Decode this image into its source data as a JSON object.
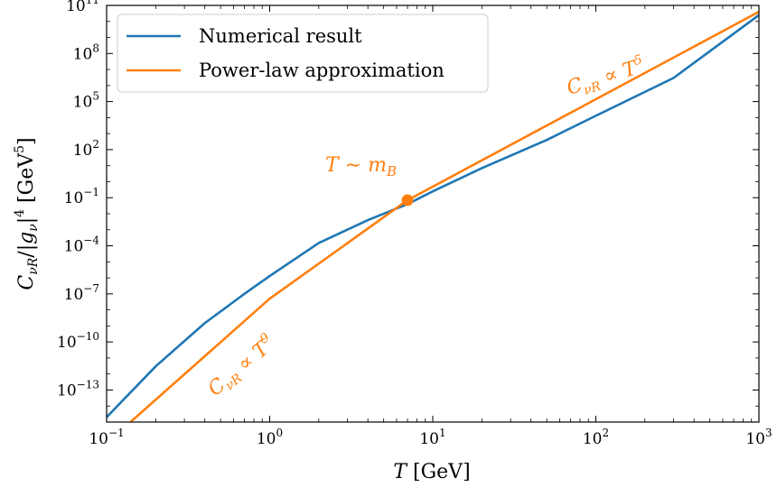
{
  "chart_data": {
    "type": "line",
    "x_scale": "log",
    "y_scale": "log",
    "xlabel": "T [GeV]",
    "ylabel": "C_{ν_R}/|g_ν|^4 [GeV^5]",
    "xlim": [
      0.1,
      1000
    ],
    "ylim": [
      1e-15,
      100000000000.0
    ],
    "x_ticks": [
      {
        "value": 0.1,
        "base": "10",
        "exp": "−1"
      },
      {
        "value": 1,
        "base": "10",
        "exp": "0"
      },
      {
        "value": 10,
        "base": "10",
        "exp": "1"
      },
      {
        "value": 100,
        "base": "10",
        "exp": "2"
      },
      {
        "value": 1000,
        "base": "10",
        "exp": "3"
      }
    ],
    "y_ticks": [
      {
        "value": 1e-13,
        "base": "10",
        "exp": "−13"
      },
      {
        "value": 1e-10,
        "base": "10",
        "exp": "−10"
      },
      {
        "value": 1e-07,
        "base": "10",
        "exp": "−7"
      },
      {
        "value": 0.0001,
        "base": "10",
        "exp": "−4"
      },
      {
        "value": 0.1,
        "base": "10",
        "exp": "−1"
      },
      {
        "value": 100.0,
        "base": "10",
        "exp": "2"
      },
      {
        "value": 100000.0,
        "base": "10",
        "exp": "5"
      },
      {
        "value": 100000000.0,
        "base": "10",
        "exp": "8"
      },
      {
        "value": 100000000000.0,
        "base": "10",
        "exp": "11"
      }
    ],
    "legend": {
      "placement": "top-left"
    },
    "series": [
      {
        "name": "Numerical result",
        "color": "#1f77b4",
        "points": [
          [
            0.1,
            2e-15
          ],
          [
            0.2,
            3e-12
          ],
          [
            0.4,
            1.5e-09
          ],
          [
            0.7,
            1e-07
          ],
          [
            1,
            1.3e-06
          ],
          [
            2,
            0.00015
          ],
          [
            4,
            0.004
          ],
          [
            7,
            0.04
          ],
          [
            10,
            0.25
          ],
          [
            20,
            7
          ],
          [
            50,
            400
          ],
          [
            100,
            13000.0
          ],
          [
            300,
            3000000.0
          ],
          [
            1000,
            25000000000.0
          ]
        ]
      },
      {
        "name": "Power-law approximation",
        "color": "#ff7f0e",
        "points": [
          [
            0.14,
            1e-15
          ],
          [
            1,
            5e-08
          ],
          [
            7,
            0.07
          ],
          [
            1000,
            40000000000.0
          ]
        ]
      }
    ],
    "marker": {
      "x": 7,
      "y": 0.07,
      "color": "#ff7f0e"
    },
    "annotations": [
      {
        "id": "t-sim-mb",
        "text": "T ~ m_B"
      },
      {
        "id": "t5",
        "text": "C_{ν_R} ∝ T^5"
      },
      {
        "id": "t9",
        "text": "C_{ν_R} ∝ T^9"
      }
    ]
  }
}
